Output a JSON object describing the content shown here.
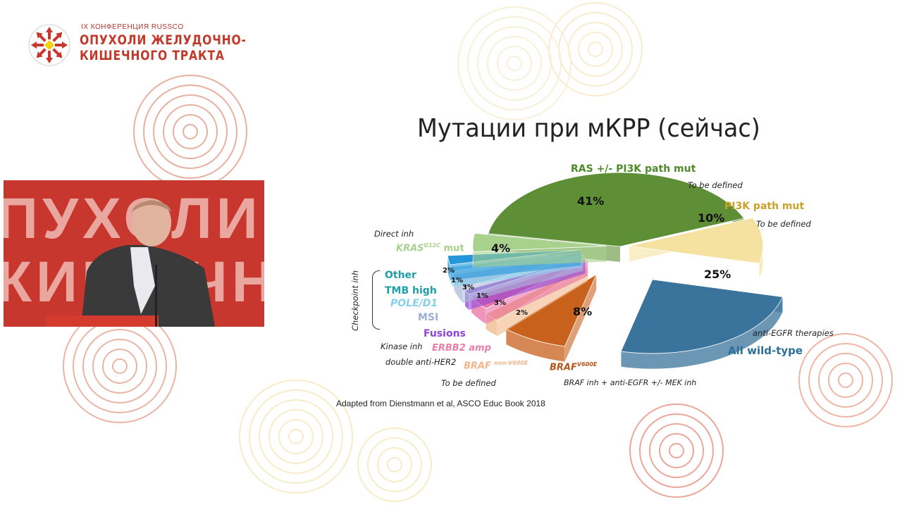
{
  "header": {
    "conference": "IX КОНФЕРЕНЦИЯ RUSSCO",
    "title_line1": "ОПУХОЛИ ЖЕЛУДОЧНО-",
    "title_line2": "КИШЕЧНОГО ТРАКТА",
    "logo_ring_text": "RUSSCO"
  },
  "video": {
    "backdrop_text_line1": "ПУХОЛИ Ж",
    "backdrop_text_line2": "КИШЕЧНОГО"
  },
  "slide": {
    "title": "Мутации при мКРР (сейчас)",
    "source": "Adapted from Dienstmann et al, ASCO Educ Book 2018",
    "notes": {
      "ras": "To be defined",
      "pi3k": "To be defined",
      "kras": "Direct inh",
      "checkpoint": "Checkpoint inh",
      "fusions": "Kinase inh",
      "erbb2": "double anti-HER2",
      "braf_non": "To be defined",
      "braf_v600e": "BRAF inh + anti-EGFR +/- MEK inh",
      "wild": "anti-EGFR therapies"
    }
  },
  "chart_data": {
    "type": "pie",
    "title": "Мутации при мКРР (сейчас)",
    "slices": [
      {
        "label": "RAS +/- PI3K path mut",
        "value": 41,
        "display": "41%",
        "color": "#5e8f36"
      },
      {
        "label": "PI3K path mut",
        "value": 10,
        "display": "10%",
        "color": "#f6e2a0"
      },
      {
        "label": "All wild-type",
        "value": 25,
        "display": "25%",
        "color": "#3a739c"
      },
      {
        "label": "BRAF",
        "sup": "V600E",
        "value": 8,
        "display": "8%",
        "color": "#c8611c"
      },
      {
        "label": "BRAF",
        "sup": "non-V600E",
        "value": 2,
        "display": "2%",
        "color": "#f1b888"
      },
      {
        "label": "ERBB2 amp",
        "value": 3,
        "display": "3%",
        "color": "#ea72a6"
      },
      {
        "label": "Fusions",
        "value": 1,
        "display": "1%",
        "color": "#8e44d6"
      },
      {
        "label": "MSI",
        "value": 3,
        "display": "3%",
        "color": "#aabbd8"
      },
      {
        "label": "POLE/D1",
        "value": 1,
        "display": "1%",
        "color": "#8cd0ee"
      },
      {
        "label": "Other TMB high",
        "value": 2,
        "display": "2%",
        "color": "#2596d8"
      },
      {
        "label": "KRAS",
        "sup": "G12C",
        "suffix": "mut",
        "value": 4,
        "display": "4%",
        "color": "#a9d18e"
      }
    ],
    "label_colors": {
      "ras": "#4e8a2a",
      "pi3k": "#c9a227",
      "wild": "#2e6f9a",
      "braf_v600e": "#b4551c",
      "braf_non": "#f0b68a",
      "erbb2": "#e77fab",
      "fusions": "#8e44d6",
      "msi": "#9cadd0",
      "pole": "#86cfea",
      "other": "#1fa0a8",
      "kras": "#a9d18e"
    }
  }
}
